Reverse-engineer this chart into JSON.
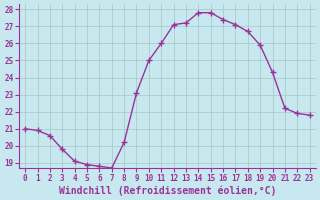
{
  "x": [
    0,
    1,
    2,
    3,
    4,
    5,
    6,
    7,
    8,
    9,
    10,
    11,
    12,
    13,
    14,
    15,
    16,
    17,
    18,
    19,
    20,
    21,
    22,
    23
  ],
  "y": [
    21.0,
    20.9,
    20.6,
    19.8,
    19.1,
    18.9,
    18.8,
    18.7,
    20.2,
    23.1,
    25.0,
    26.0,
    27.1,
    27.2,
    27.8,
    27.8,
    27.4,
    27.1,
    26.7,
    25.9,
    24.3,
    22.2,
    21.9,
    21.8
  ],
  "line_color": "#993399",
  "marker": "+",
  "marker_size": 4,
  "bg_color": "#c8e8f0",
  "grid_color": "#aacccc",
  "xlabel": "Windchill (Refroidissement éolien,°C)",
  "xlabel_color": "#993399",
  "tick_color": "#993399",
  "axis_color": "#993399",
  "ylim": [
    19,
    28
  ],
  "xlim": [
    -0.5,
    23.5
  ],
  "yticks": [
    19,
    20,
    21,
    22,
    23,
    24,
    25,
    26,
    27,
    28
  ],
  "xticks": [
    0,
    1,
    2,
    3,
    4,
    5,
    6,
    7,
    8,
    9,
    10,
    11,
    12,
    13,
    14,
    15,
    16,
    17,
    18,
    19,
    20,
    21,
    22,
    23
  ],
  "tick_fontsize": 5.5,
  "xlabel_fontsize": 7.0,
  "linewidth": 1.0
}
